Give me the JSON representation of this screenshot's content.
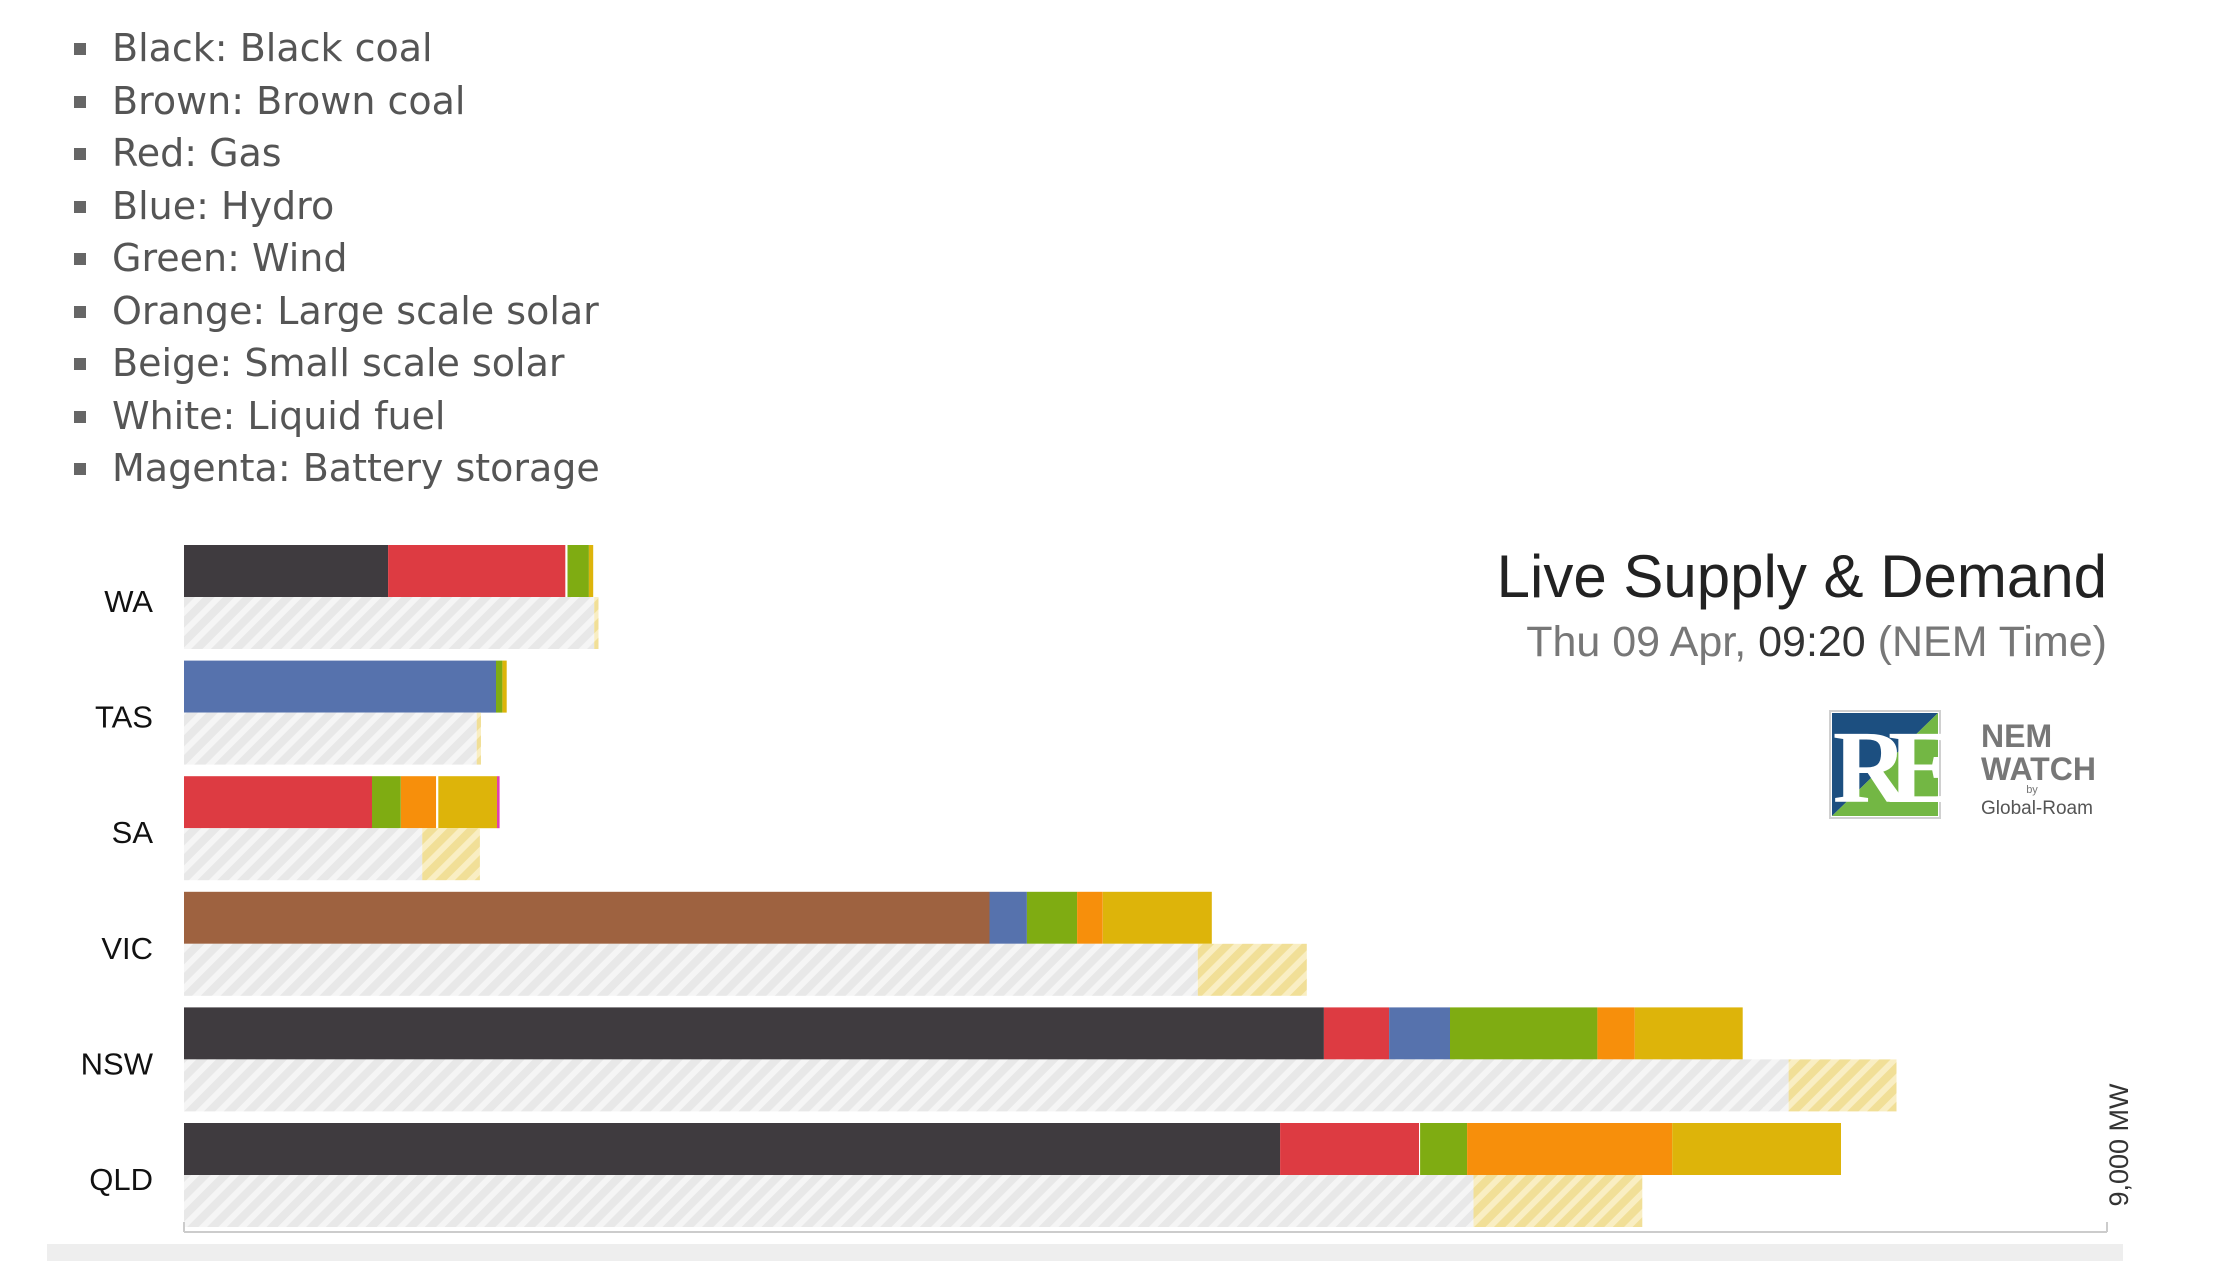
{
  "legend": {
    "items": [
      {
        "label": "Black: Black coal",
        "color": "#3f3b3f"
      },
      {
        "label": "Brown: Brown coal",
        "color": "#9e6240"
      },
      {
        "label": "Red: Gas",
        "color": "#dd3b42"
      },
      {
        "label": "Blue: Hydro",
        "color": "#5672ad"
      },
      {
        "label": "Green: Wind",
        "color": "#7fac12"
      },
      {
        "label": "Orange: Large scale solar",
        "color": "#f78f0b"
      },
      {
        "label": "Beige: Small scale solar",
        "color": "#ddb40a"
      },
      {
        "label": "White: Liquid fuel",
        "color": "#ffffff"
      },
      {
        "label": "Magenta: Battery storage",
        "color": "#e040b0"
      }
    ]
  },
  "header": {
    "title": "Live Supply & Demand",
    "date_prefix": "Thu 09 Apr, ",
    "time": "09:20",
    "time_suffix": " (NEM Time)"
  },
  "logos": {
    "re": {
      "letters": "RE"
    },
    "nemwatch": {
      "line1": "NEM",
      "line2": "WATCH",
      "by": "by",
      "company": "Global-Roam"
    }
  },
  "chart_data": {
    "type": "bar",
    "orientation": "horizontal",
    "stacked": true,
    "unit": "MW",
    "xlim": [
      0,
      9000
    ],
    "scale_label": "9,000 MW",
    "categories": [
      "WA",
      "TAS",
      "SA",
      "VIC",
      "NSW",
      "QLD"
    ],
    "colors": {
      "Black coal": "#3f3b3f",
      "Brown coal": "#9e6240",
      "Gas": "#dd3b42",
      "Hydro": "#5672ad",
      "Wind": "#7fac12",
      "Large scale solar": "#f78f0b",
      "Small scale solar": "#ddb40a",
      "Liquid fuel": "#ffffff",
      "Battery storage": "#e040b0",
      "Demand": "#e6e6e6"
    },
    "supply": [
      [
        [
          "Black coal",
          955
        ],
        [
          "Gas",
          830
        ],
        [
          "Liquid fuel",
          10
        ],
        [
          "Wind",
          100
        ],
        [
          "Small scale solar",
          20
        ]
      ],
      [
        [
          "Hydro",
          1460
        ],
        [
          "Wind",
          30
        ],
        [
          "Small scale solar",
          20
        ]
      ],
      [
        [
          "Gas",
          880
        ],
        [
          "Wind",
          135
        ],
        [
          "Large scale solar",
          165
        ],
        [
          "Liquid fuel",
          10
        ],
        [
          "Small scale solar",
          275
        ],
        [
          "Battery storage",
          12
        ]
      ],
      [
        [
          "Brown coal",
          3770
        ],
        [
          "Hydro",
          175
        ],
        [
          "Wind",
          235
        ],
        [
          "Large scale solar",
          120
        ],
        [
          "Small scale solar",
          510
        ]
      ],
      [
        [
          "Black coal",
          5335
        ],
        [
          "Gas",
          305
        ],
        [
          "Hydro",
          285
        ],
        [
          "Wind",
          690
        ],
        [
          "Large scale solar",
          175
        ],
        [
          "Small scale solar",
          505
        ]
      ],
      [
        [
          "Black coal",
          5130
        ],
        [
          "Gas",
          650
        ],
        [
          "Liquid fuel",
          5
        ],
        [
          "Wind",
          220
        ],
        [
          "Large scale solar",
          960
        ],
        [
          "Small scale solar",
          790
        ]
      ]
    ],
    "demand": [
      {
        "operational": 1920,
        "small_scale_solar": 20
      },
      {
        "operational": 1370,
        "small_scale_solar": 20
      },
      {
        "operational": 1115,
        "small_scale_solar": 270
      },
      {
        "operational": 4745,
        "small_scale_solar": 510
      },
      {
        "operational": 7510,
        "small_scale_solar": 505
      },
      {
        "operational": 6035,
        "small_scale_solar": 790
      }
    ]
  }
}
